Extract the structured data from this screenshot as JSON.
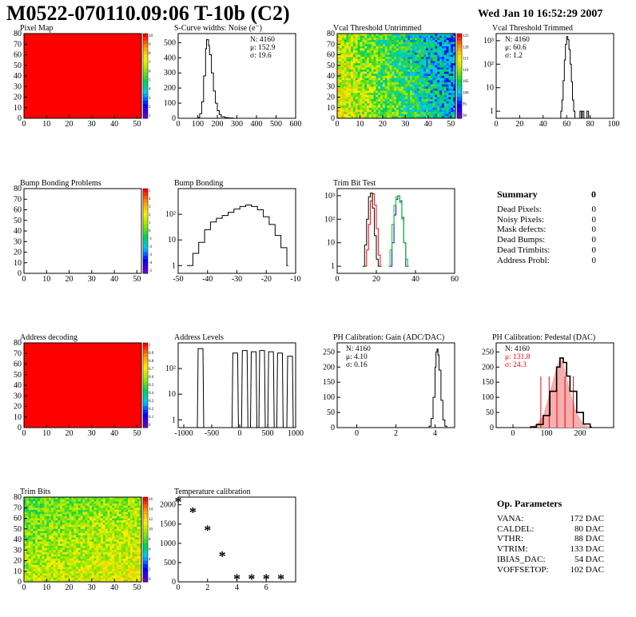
{
  "header": {
    "title": "M0522-070110.09:06 T-10b (C2)",
    "date": "Wed Jan 10 16:52:29 2007"
  },
  "colors": {
    "frame": "#000000",
    "red_fill": "#ff0000",
    "green_line": "#00cc00",
    "blue_line": "#0000ff",
    "stats_red": "#ff0000"
  },
  "chart_data": [
    {
      "id": "pixel-map",
      "type": "heatmap",
      "title": "Pixel Map",
      "xlim": [
        0,
        52
      ],
      "ylim": [
        0,
        80
      ],
      "xticks": [
        0,
        10,
        20,
        30,
        40,
        50
      ],
      "yticks": [
        0,
        10,
        20,
        30,
        40,
        50,
        60,
        70,
        80
      ],
      "fill": "uniform-red",
      "palette_ticks": [
        "10",
        "9",
        "8",
        "7",
        "6",
        "5",
        "4",
        "3",
        "2",
        "1"
      ]
    },
    {
      "id": "scurve-noise",
      "type": "line",
      "title": "S-Curve widths: Noise (e⁻)",
      "xlim": [
        0,
        600
      ],
      "ylim": [
        0,
        560
      ],
      "xticks": [
        0,
        100,
        200,
        300,
        400,
        500,
        600
      ],
      "yticks": [
        0,
        100,
        200,
        300,
        400,
        500
      ],
      "stats": [
        "N: 4160",
        "μ: 152.9",
        "σ: 19.6"
      ],
      "series": [
        {
          "x": [
            90,
            100,
            110,
            120,
            130,
            140,
            145,
            150,
            155,
            160,
            170,
            180,
            190,
            200,
            210,
            220,
            240,
            260,
            280
          ],
          "values": [
            0,
            5,
            30,
            110,
            280,
            460,
            520,
            520,
            480,
            420,
            300,
            180,
            100,
            50,
            25,
            10,
            4,
            2,
            0
          ]
        }
      ]
    },
    {
      "id": "vcal-untrimmed",
      "type": "heatmap",
      "title": "Vcal Threshold Untrimmed",
      "xlim": [
        0,
        52
      ],
      "ylim": [
        0,
        80
      ],
      "xticks": [
        0,
        10,
        20,
        30,
        40,
        50
      ],
      "yticks": [
        0,
        10,
        20,
        30,
        40,
        50,
        60,
        70,
        80
      ],
      "palette_ticks": [
        "125",
        "120",
        "115",
        "110",
        "105",
        "100",
        "95",
        "90"
      ]
    },
    {
      "id": "vcal-trimmed",
      "type": "line",
      "title": "Vcal Threshold Trimmed",
      "ylog": true,
      "xlim": [
        0,
        100
      ],
      "ylim": [
        0.5,
        2000
      ],
      "xticks": [
        0,
        20,
        40,
        60,
        80,
        100
      ],
      "yticks": [
        "1",
        "10",
        "10²",
        "10³"
      ],
      "stats": [
        "N: 4160",
        "μ: 60.6",
        "σ:  1.2"
      ],
      "series": [
        {
          "x": [
            54,
            55,
            56,
            57,
            58,
            59,
            60,
            61,
            62,
            63,
            64,
            65,
            66,
            67
          ],
          "values": [
            0,
            1,
            3,
            20,
            150,
            700,
            1500,
            1100,
            420,
            100,
            18,
            3,
            1,
            0
          ]
        }
      ],
      "outliers": [
        {
          "x": 72,
          "value": 1
        },
        {
          "x": 74,
          "value": 1
        },
        {
          "x": 78,
          "value": 1
        }
      ]
    },
    {
      "id": "bump-problems",
      "type": "heatmap",
      "title": "Bump Bonding Problems",
      "xlim": [
        0,
        52
      ],
      "ylim": [
        0,
        80
      ],
      "xticks": [
        0,
        10,
        20,
        30,
        40,
        50
      ],
      "yticks": [
        0,
        10,
        20,
        30,
        40,
        50,
        60,
        70,
        80
      ],
      "fill": "empty",
      "palette_ticks": [
        "5",
        "4",
        "3",
        "2",
        "1",
        "0",
        "-1",
        "-2",
        "-3",
        "-4",
        "-5"
      ]
    },
    {
      "id": "bump-bonding",
      "type": "line",
      "title": "Bump Bonding",
      "ylog": true,
      "xlim": [
        -50,
        -10
      ],
      "ylim": [
        0.5,
        1000
      ],
      "xticks": [
        -50,
        -40,
        -30,
        -20,
        -10
      ],
      "yticks": [
        "1",
        "10",
        "10²"
      ],
      "series": [
        {
          "x": [
            -47,
            -45,
            -43,
            -41,
            -39,
            -37,
            -35,
            -33,
            -31,
            -29,
            -27,
            -25,
            -23,
            -21,
            -19,
            -17,
            -15,
            -13
          ],
          "values": [
            1,
            3,
            8,
            25,
            50,
            70,
            90,
            120,
            160,
            200,
            230,
            200,
            150,
            80,
            40,
            15,
            5,
            1
          ]
        }
      ]
    },
    {
      "id": "trim-bit-test",
      "type": "line",
      "title": "Trim Bit Test",
      "ylog": true,
      "xlim": [
        0,
        60
      ],
      "ylim": [
        0.5,
        2000
      ],
      "xticks": [
        0,
        20,
        40,
        60
      ],
      "yticks": [
        "1",
        "10",
        "10²",
        "10³"
      ],
      "series": [
        {
          "color": "red",
          "x": [
            14,
            15,
            16,
            17,
            18,
            19,
            20,
            21,
            22
          ],
          "values": [
            1,
            5,
            60,
            600,
            1200,
            400,
            40,
            3,
            1
          ]
        },
        {
          "color": "black",
          "x": [
            13,
            14,
            15,
            16,
            17,
            18,
            19,
            20,
            21
          ],
          "values": [
            1,
            8,
            100,
            900,
            1300,
            300,
            20,
            2,
            1
          ]
        },
        {
          "color": "blue",
          "x": [
            27,
            28,
            29,
            30,
            31,
            32,
            33,
            34,
            35
          ],
          "values": [
            1,
            10,
            150,
            700,
            1000,
            600,
            120,
            10,
            1
          ]
        },
        {
          "color": "green",
          "x": [
            26,
            27,
            28,
            29,
            30,
            31,
            32,
            33,
            34,
            35,
            36
          ],
          "values": [
            1,
            5,
            60,
            400,
            900,
            1000,
            500,
            100,
            10,
            2,
            1
          ]
        }
      ]
    },
    {
      "id": "address-decoding",
      "type": "heatmap",
      "title": "Address decoding",
      "xlim": [
        0,
        52
      ],
      "ylim": [
        0,
        80
      ],
      "xticks": [
        0,
        10,
        20,
        30,
        40,
        50
      ],
      "yticks": [
        0,
        10,
        20,
        30,
        40,
        50,
        60,
        70,
        80
      ],
      "fill": "uniform-red",
      "palette_ticks": [
        "1",
        "0.9",
        "0.8",
        "0.7",
        "0.6",
        "0.5",
        "0.4",
        "0.3",
        "0.2",
        "0.1",
        "0"
      ]
    },
    {
      "id": "address-levels",
      "type": "line",
      "title": "Address Levels",
      "ylog": true,
      "xlim": [
        -1100,
        1000
      ],
      "ylim": [
        0.5,
        1000
      ],
      "xticks": [
        -1000,
        -500,
        0,
        500,
        1000
      ],
      "yticks": [
        "1",
        "10",
        "10²"
      ],
      "peaks": [
        -700,
        -80,
        90,
        250,
        400,
        560,
        720,
        900
      ],
      "peak_values": [
        600,
        400,
        500,
        450,
        500,
        450,
        400,
        300
      ]
    },
    {
      "id": "ph-gain",
      "type": "line",
      "title": "PH Calibration: Gain (ADC/DAC)",
      "xlim": [
        -1,
        5
      ],
      "ylim": [
        0,
        280
      ],
      "xticks": [
        0,
        2,
        4
      ],
      "yticks": [
        0,
        50,
        100,
        150,
        200,
        250
      ],
      "stats": [
        "N: 4160",
        "μ: 4.10",
        "σ: 0.16"
      ],
      "series": [
        {
          "x": [
            3.6,
            3.7,
            3.8,
            3.9,
            4.0,
            4.05,
            4.1,
            4.15,
            4.2,
            4.3,
            4.4,
            4.5,
            4.6
          ],
          "values": [
            0,
            5,
            30,
            100,
            200,
            250,
            260,
            240,
            190,
            90,
            25,
            5,
            0
          ]
        }
      ]
    },
    {
      "id": "ph-pedestal",
      "type": "line",
      "title": "PH Calibration: Pedestal (DAC)",
      "xlim": [
        -50,
        300
      ],
      "ylim": [
        0,
        280
      ],
      "xticks": [
        0,
        100,
        200
      ],
      "yticks": [
        0,
        50,
        100,
        150,
        200,
        250
      ],
      "stats": [
        "N: 4160"
      ],
      "stats_red": [
        "μ: 131.8",
        "σ: 24.3"
      ],
      "series": [
        {
          "x": [
            50,
            70,
            90,
            110,
            130,
            140,
            150,
            160,
            170,
            190,
            210,
            230
          ],
          "values": [
            2,
            10,
            40,
            120,
            200,
            230,
            215,
            170,
            120,
            50,
            12,
            2
          ]
        }
      ],
      "fit_lines_x": [
        83,
        108,
        131,
        155,
        180
      ]
    },
    {
      "id": "trim-bits",
      "type": "heatmap",
      "title": "Trim Bits",
      "xlim": [
        0,
        52
      ],
      "ylim": [
        0,
        80
      ],
      "xticks": [
        0,
        10,
        20,
        30,
        40,
        50
      ],
      "yticks": [
        0,
        10,
        20,
        30,
        40,
        50,
        60,
        70,
        80
      ],
      "palette_ticks": [
        "16",
        "14",
        "12",
        "10",
        "8",
        "6",
        "4",
        "2",
        "0"
      ]
    },
    {
      "id": "temperature",
      "type": "scatter",
      "title": "Temperature calibration",
      "xlim": [
        0,
        8
      ],
      "ylim": [
        0,
        2200
      ],
      "xticks": [
        0,
        2,
        4,
        6
      ],
      "yticks": [
        0,
        500,
        1000,
        1500,
        2000
      ],
      "series": [
        {
          "x": [
            0,
            1,
            2,
            3,
            4,
            5,
            6,
            7
          ],
          "values": [
            2050,
            1780,
            1320,
            640,
            50,
            50,
            50,
            50
          ]
        }
      ]
    }
  ],
  "summary": {
    "title": "Summary",
    "value": "0",
    "rows": [
      {
        "label": "Dead Pixels:",
        "value": "0"
      },
      {
        "label": "Noisy Pixels:",
        "value": "0"
      },
      {
        "label": "Mask defects:",
        "value": "0"
      },
      {
        "label": "Dead Bumps:",
        "value": "0"
      },
      {
        "label": "Dead Trimbits:",
        "value": "0"
      },
      {
        "label": "Address Probl:",
        "value": "0"
      }
    ]
  },
  "op_params": {
    "title": "Op. Parameters",
    "rows": [
      {
        "label": "VANA:",
        "value": "172 DAC"
      },
      {
        "label": "CALDEL:",
        "value": "80 DAC"
      },
      {
        "label": "VTHR:",
        "value": "88 DAC"
      },
      {
        "label": "VTRIM:",
        "value": "133 DAC"
      },
      {
        "label": "IBIAS_DAC:",
        "value": "54 DAC"
      },
      {
        "label": "VOFFSETOP:",
        "value": "102 DAC"
      }
    ]
  }
}
